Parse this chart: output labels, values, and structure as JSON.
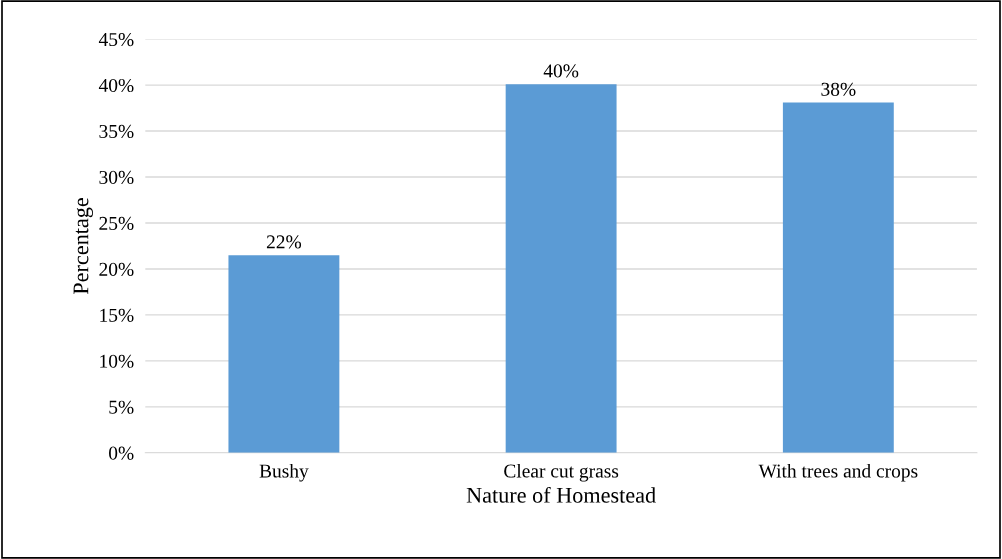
{
  "chart_data": {
    "type": "bar",
    "xlabel": "Nature of Homestead",
    "ylabel": "Percentage",
    "categories": [
      "Bushy",
      "Clear cut grass",
      "With trees and crops"
    ],
    "values": [
      21.5,
      40.1,
      38.1
    ],
    "value_labels": [
      "22%",
      "40%",
      "38%"
    ],
    "color": "#5b9bd5",
    "ylim": [
      0,
      45
    ],
    "yticks": [
      {
        "value": 0,
        "label": "0%"
      },
      {
        "value": 5,
        "label": "5%"
      },
      {
        "value": 10,
        "label": "10%"
      },
      {
        "value": 15,
        "label": "15%"
      },
      {
        "value": 20,
        "label": "20%"
      },
      {
        "value": 25,
        "label": "25%"
      },
      {
        "value": 30,
        "label": "30%"
      },
      {
        "value": 35,
        "label": "35%"
      },
      {
        "value": 40,
        "label": "40%"
      },
      {
        "value": 45,
        "label": "45%"
      }
    ],
    "grid": "y"
  }
}
